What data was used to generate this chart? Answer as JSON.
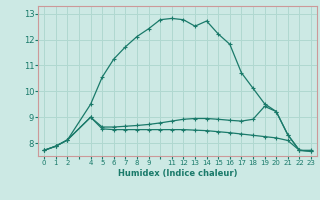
{
  "xlabel": "Humidex (Indice chaleur)",
  "bg_color": "#cce9e4",
  "grid_color": "#b0d8d0",
  "line_color": "#1a7a6a",
  "spine_color": "#cc9999",
  "xlim": [
    -0.5,
    23.5
  ],
  "ylim": [
    7.5,
    13.3
  ],
  "xticks": [
    0,
    1,
    2,
    3,
    4,
    5,
    6,
    7,
    8,
    9,
    10,
    11,
    12,
    13,
    14,
    15,
    16,
    17,
    18,
    19,
    20,
    21,
    22,
    23
  ],
  "xtick_labels": [
    "0",
    "1",
    "2",
    "",
    "4",
    "5",
    "6",
    "7",
    "8",
    "9",
    "",
    "11",
    "12",
    "13",
    "14",
    "15",
    "16",
    "17",
    "18",
    "19",
    "20",
    "21",
    "22",
    "23"
  ],
  "yticks": [
    8,
    9,
    10,
    11,
    12,
    13
  ],
  "line1_x": [
    0,
    1,
    2,
    4,
    5,
    6,
    7,
    8,
    9,
    10,
    11,
    12,
    13,
    14,
    15,
    16,
    17,
    18,
    19,
    20,
    21,
    22,
    23
  ],
  "line1_y": [
    7.72,
    7.88,
    8.12,
    9.5,
    10.55,
    11.25,
    11.72,
    12.12,
    12.42,
    12.77,
    12.82,
    12.77,
    12.52,
    12.72,
    12.22,
    11.82,
    10.72,
    10.12,
    9.52,
    9.22,
    8.32,
    7.72,
    7.72
  ],
  "line2_x": [
    0,
    1,
    2,
    4,
    5,
    6,
    7,
    8,
    9,
    10,
    11,
    12,
    13,
    14,
    15,
    16,
    17,
    18,
    19,
    20,
    21,
    22,
    23
  ],
  "line2_y": [
    7.72,
    7.88,
    8.12,
    9.0,
    8.55,
    8.52,
    8.52,
    8.52,
    8.52,
    8.52,
    8.52,
    8.52,
    8.5,
    8.48,
    8.44,
    8.4,
    8.35,
    8.3,
    8.25,
    8.2,
    8.1,
    7.72,
    7.68
  ],
  "line3_x": [
    0,
    1,
    2,
    4,
    5,
    6,
    7,
    8,
    9,
    10,
    11,
    12,
    13,
    14,
    15,
    16,
    17,
    18,
    19,
    20,
    21,
    22,
    23
  ],
  "line3_y": [
    7.72,
    7.88,
    8.12,
    9.0,
    8.62,
    8.62,
    8.65,
    8.68,
    8.72,
    8.78,
    8.85,
    8.92,
    8.95,
    8.95,
    8.92,
    8.88,
    8.85,
    8.92,
    9.42,
    9.22,
    8.32,
    7.72,
    7.68
  ]
}
